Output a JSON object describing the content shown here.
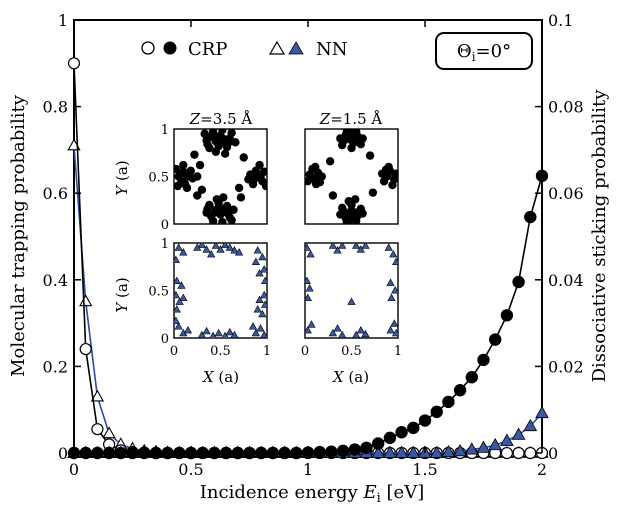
{
  "colors": {
    "crp": "#000000",
    "nn": "#3a58a0",
    "nn_line": "#2d4d9c",
    "frame": "#000000"
  },
  "chart_data": {
    "type": "line",
    "xlabel": "Incidence energy",
    "xlabel_symbol": "E",
    "xlabel_sub": "i",
    "xlabel_unit": " [eV]",
    "ylabel_left": "Molecular trapping probability",
    "ylabel_right": "Dissociative sticking probability",
    "xlim": [
      0,
      2
    ],
    "ylim_left": [
      0,
      1
    ],
    "ylim_right": [
      0,
      0.1
    ],
    "x_ticks": [
      "0",
      "0.5",
      "1",
      "1.5",
      "2"
    ],
    "y_left_ticks": [
      "0",
      "0.2",
      "0.4",
      "0.6",
      "0.8",
      "1"
    ],
    "y_right_ticks": [
      "0",
      "0.02",
      "0.04",
      "0.06",
      "0.08",
      "0.1"
    ],
    "legend": {
      "crp": "CRP",
      "nn": "NN"
    },
    "angle_label": {
      "sym": "Θ",
      "sub": "i",
      "rest": "=0°"
    },
    "series": [
      {
        "name": "CRP",
        "axis": "left",
        "marker": "open-circle",
        "x": [
          0,
          0.05,
          0.1,
          0.15,
          0.2,
          0.25,
          0.3,
          0.35,
          0.4,
          0.45,
          0.5,
          0.55,
          0.6,
          0.65,
          0.7,
          0.75,
          0.8,
          0.85,
          0.9,
          0.95,
          1.0,
          1.05,
          1.1,
          1.15,
          1.2,
          1.25,
          1.3,
          1.35,
          1.4,
          1.45,
          1.5,
          1.55,
          1.6,
          1.65,
          1.7,
          1.75,
          1.8,
          1.85,
          1.9,
          1.95,
          2.0
        ],
        "y": [
          0.9,
          0.24,
          0.055,
          0.02,
          0.006,
          0.002,
          0.001,
          0,
          0,
          0,
          0,
          0,
          0,
          0,
          0,
          0,
          0,
          0,
          0,
          0,
          0,
          0,
          0,
          0,
          0,
          0,
          0,
          0,
          0,
          0,
          0,
          0,
          0,
          0,
          0,
          0,
          0,
          0,
          0,
          0,
          0
        ]
      },
      {
        "name": "CRP",
        "axis": "right",
        "marker": "filled-circle",
        "x": [
          0,
          0.05,
          0.1,
          0.15,
          0.2,
          0.25,
          0.3,
          0.35,
          0.4,
          0.45,
          0.5,
          0.55,
          0.6,
          0.65,
          0.7,
          0.75,
          0.8,
          0.85,
          0.9,
          0.95,
          1.0,
          1.05,
          1.1,
          1.15,
          1.2,
          1.25,
          1.3,
          1.35,
          1.4,
          1.45,
          1.5,
          1.55,
          1.6,
          1.65,
          1.7,
          1.75,
          1.8,
          1.85,
          1.9,
          1.95,
          2.0
        ],
        "y": [
          0,
          0,
          0,
          0,
          0,
          0,
          0,
          0,
          0,
          0,
          0,
          0,
          0,
          0,
          0,
          0,
          0,
          0,
          0,
          0,
          0.0001,
          0.0002,
          0.0003,
          0.0005,
          0.0008,
          0.0012,
          0.0022,
          0.0035,
          0.0048,
          0.0058,
          0.0075,
          0.0095,
          0.0118,
          0.0145,
          0.0175,
          0.0215,
          0.0262,
          0.0318,
          0.0395,
          0.0545,
          0.064
        ]
      },
      {
        "name": "NN",
        "axis": "left",
        "marker": "open-triangle",
        "x": [
          0,
          0.05,
          0.1,
          0.15,
          0.2,
          0.25,
          0.3,
          0.35,
          0.4,
          0.45,
          0.5,
          0.55,
          0.6,
          0.65,
          0.7,
          0.75,
          0.8,
          0.85,
          0.9,
          0.95,
          1.0,
          1.05,
          1.1,
          1.15,
          1.2,
          1.25,
          1.3,
          1.35,
          1.4,
          1.45,
          1.5,
          1.55,
          1.6,
          1.65,
          1.7,
          1.75,
          1.8,
          1.85,
          1.9,
          1.95,
          2.0
        ],
        "y": [
          0.71,
          0.35,
          0.13,
          0.045,
          0.02,
          0.01,
          0.005,
          0.003,
          0.001,
          0,
          0,
          0,
          0,
          0,
          0,
          0,
          0,
          0,
          0,
          0,
          0,
          0,
          0,
          0,
          0,
          0,
          0,
          0,
          0,
          0,
          0,
          0,
          0,
          0,
          0,
          0,
          0,
          0,
          0,
          0,
          0
        ]
      },
      {
        "name": "NN",
        "axis": "right",
        "marker": "filled-triangle",
        "x": [
          0,
          0.05,
          0.1,
          0.15,
          0.2,
          0.25,
          0.3,
          0.35,
          0.4,
          0.45,
          0.5,
          0.55,
          0.6,
          0.65,
          0.7,
          0.75,
          0.8,
          0.85,
          0.9,
          0.95,
          1.0,
          1.05,
          1.1,
          1.15,
          1.2,
          1.25,
          1.3,
          1.35,
          1.4,
          1.45,
          1.5,
          1.55,
          1.6,
          1.65,
          1.7,
          1.75,
          1.8,
          1.85,
          1.9,
          1.95,
          2.0
        ],
        "y": [
          0,
          0,
          0,
          0,
          0,
          0,
          0,
          0,
          0,
          0,
          0,
          0,
          0,
          0,
          0,
          0,
          0,
          0,
          0,
          0,
          0,
          0,
          0,
          0,
          0,
          0,
          0,
          0,
          0,
          0,
          0,
          0,
          0.0002,
          0.0004,
          0.0008,
          0.0012,
          0.0018,
          0.0028,
          0.0042,
          0.0062,
          0.0092
        ]
      }
    ]
  },
  "insets": {
    "titles": [
      {
        "sym": "Z",
        "rest": "=3.5 Å"
      },
      {
        "sym": "Z",
        "rest": "=1.5 Å"
      }
    ],
    "xlabel": {
      "sym": "X",
      "rest": " (a)"
    },
    "ylabel": {
      "sym": "Y",
      "rest": " (a)"
    },
    "x_ticks": [
      "0",
      "0.5",
      "1"
    ],
    "y_ticks": [
      "0",
      "0.5",
      "1"
    ],
    "panels": [
      {
        "name": "CRP Z=3.5",
        "marker": "filled-circle",
        "points": [
          [
            0.35,
            0.88
          ],
          [
            0.4,
            0.92
          ],
          [
            0.45,
            0.87
          ],
          [
            0.5,
            0.93
          ],
          [
            0.55,
            0.89
          ],
          [
            0.6,
            0.9
          ],
          [
            0.38,
            0.8
          ],
          [
            0.48,
            0.82
          ],
          [
            0.57,
            0.81
          ],
          [
            0.42,
            0.97
          ],
          [
            0.52,
            0.99
          ],
          [
            0.62,
            0.96
          ],
          [
            0.33,
            0.95
          ],
          [
            0.45,
            0.76
          ],
          [
            0.55,
            0.74
          ],
          [
            0.5,
            0.86
          ],
          [
            0.44,
            0.9
          ],
          [
            0.58,
            0.85
          ],
          [
            0.36,
            0.84
          ],
          [
            0.66,
            0.86
          ],
          [
            0.05,
            0.5
          ],
          [
            0.1,
            0.55
          ],
          [
            0.08,
            0.45
          ],
          [
            0.15,
            0.5
          ],
          [
            0.02,
            0.58
          ],
          [
            0.12,
            0.42
          ],
          [
            0.18,
            0.56
          ],
          [
            0.04,
            0.4
          ],
          [
            0.2,
            0.48
          ],
          [
            0.1,
            0.62
          ],
          [
            0.07,
            0.52
          ],
          [
            0.14,
            0.38
          ],
          [
            0.9,
            0.5
          ],
          [
            0.95,
            0.45
          ],
          [
            0.88,
            0.56
          ],
          [
            0.82,
            0.52
          ],
          [
            0.97,
            0.55
          ],
          [
            0.85,
            0.42
          ],
          [
            0.92,
            0.62
          ],
          [
            0.8,
            0.47
          ],
          [
            0.99,
            0.4
          ],
          [
            0.93,
            0.5
          ],
          [
            0.87,
            0.48
          ],
          [
            0.35,
            0.12
          ],
          [
            0.4,
            0.08
          ],
          [
            0.45,
            0.15
          ],
          [
            0.5,
            0.1
          ],
          [
            0.55,
            0.14
          ],
          [
            0.6,
            0.07
          ],
          [
            0.38,
            0.2
          ],
          [
            0.48,
            0.22
          ],
          [
            0.57,
            0.19
          ],
          [
            0.42,
            0.03
          ],
          [
            0.52,
            0.02
          ],
          [
            0.62,
            0.04
          ],
          [
            0.46,
            0.26
          ],
          [
            0.53,
            0.28
          ],
          [
            0.5,
            0.16
          ],
          [
            0.44,
            0.12
          ],
          [
            0.58,
            0.11
          ],
          [
            0.36,
            0.16
          ],
          [
            0.64,
            0.15
          ],
          [
            0.25,
            0.3
          ],
          [
            0.72,
            0.28
          ],
          [
            0.22,
            0.73
          ],
          [
            0.75,
            0.7
          ],
          [
            0.28,
            0.62
          ],
          [
            0.7,
            0.38
          ],
          [
            0.3,
            0.36
          ],
          [
            0.25,
            0.5
          ]
        ]
      },
      {
        "name": "CRP Z=1.5",
        "marker": "filled-circle",
        "points": [
          [
            0.38,
            0.9
          ],
          [
            0.44,
            0.94
          ],
          [
            0.5,
            0.88
          ],
          [
            0.56,
            0.93
          ],
          [
            0.62,
            0.9
          ],
          [
            0.4,
            0.83
          ],
          [
            0.5,
            0.8
          ],
          [
            0.6,
            0.84
          ],
          [
            0.45,
            0.98
          ],
          [
            0.55,
            0.97
          ],
          [
            0.48,
            0.91
          ],
          [
            0.53,
            0.86
          ],
          [
            0.42,
            0.88
          ],
          [
            0.58,
            0.88
          ],
          [
            0.5,
            0.95
          ],
          [
            0.05,
            0.52
          ],
          [
            0.1,
            0.47
          ],
          [
            0.14,
            0.54
          ],
          [
            0.03,
            0.45
          ],
          [
            0.18,
            0.5
          ],
          [
            0.08,
            0.58
          ],
          [
            0.12,
            0.42
          ],
          [
            0.06,
            0.5
          ],
          [
            0.16,
            0.44
          ],
          [
            0.11,
            0.6
          ],
          [
            0.88,
            0.5
          ],
          [
            0.92,
            0.55
          ],
          [
            0.96,
            0.47
          ],
          [
            0.85,
            0.45
          ],
          [
            0.9,
            0.6
          ],
          [
            0.98,
            0.53
          ],
          [
            0.83,
            0.53
          ],
          [
            0.94,
            0.41
          ],
          [
            0.87,
            0.57
          ],
          [
            0.38,
            0.1
          ],
          [
            0.44,
            0.06
          ],
          [
            0.5,
            0.14
          ],
          [
            0.56,
            0.08
          ],
          [
            0.62,
            0.11
          ],
          [
            0.4,
            0.17
          ],
          [
            0.5,
            0.2
          ],
          [
            0.6,
            0.16
          ],
          [
            0.45,
            0.02
          ],
          [
            0.55,
            0.03
          ],
          [
            0.48,
            0.1
          ],
          [
            0.53,
            0.12
          ],
          [
            0.42,
            0.13
          ],
          [
            0.58,
            0.13
          ],
          [
            0.5,
            0.05
          ],
          [
            0.47,
            0.24
          ],
          [
            0.54,
            0.26
          ],
          [
            0.3,
            0.3
          ],
          [
            0.7,
            0.72
          ],
          [
            0.27,
            0.66
          ],
          [
            0.73,
            0.33
          ]
        ]
      },
      {
        "name": "NN Z=3.5",
        "marker": "filled-triangle",
        "points": [
          [
            0.05,
            0.95
          ],
          [
            0.1,
            0.9
          ],
          [
            0.02,
            0.82
          ],
          [
            0.3,
            0.98
          ],
          [
            0.35,
            0.93
          ],
          [
            0.45,
            0.97
          ],
          [
            0.5,
            0.93
          ],
          [
            0.55,
            0.98
          ],
          [
            0.6,
            0.95
          ],
          [
            0.65,
            0.92
          ],
          [
            0.9,
            0.92
          ],
          [
            0.95,
            0.85
          ],
          [
            0.88,
            0.8
          ],
          [
            0.97,
            0.72
          ],
          [
            0.92,
            0.68
          ],
          [
            0.98,
            0.6
          ],
          [
            0.03,
            0.6
          ],
          [
            0.08,
            0.55
          ],
          [
            0.02,
            0.45
          ],
          [
            0.06,
            0.38
          ],
          [
            0.1,
            0.42
          ],
          [
            0.03,
            0.3
          ],
          [
            0.92,
            0.4
          ],
          [
            0.97,
            0.45
          ],
          [
            0.9,
            0.3
          ],
          [
            0.98,
            0.35
          ],
          [
            0.95,
            0.25
          ],
          [
            0.05,
            0.12
          ],
          [
            0.1,
            0.05
          ],
          [
            0.15,
            0.08
          ],
          [
            0.02,
            0.18
          ],
          [
            0.3,
            0.03
          ],
          [
            0.35,
            0.07
          ],
          [
            0.42,
            0.02
          ],
          [
            0.48,
            0.05
          ],
          [
            0.55,
            0.02
          ],
          [
            0.6,
            0.06
          ],
          [
            0.65,
            0.03
          ],
          [
            0.88,
            0.05
          ],
          [
            0.93,
            0.1
          ],
          [
            0.97,
            0.03
          ],
          [
            0.85,
            0.12
          ],
          [
            0.7,
            0.9
          ],
          [
            0.25,
            0.95
          ],
          [
            0.4,
            0.88
          ]
        ]
      },
      {
        "name": "NN Z=1.5",
        "marker": "filled-triangle",
        "points": [
          [
            0.02,
            0.95
          ],
          [
            0.06,
            0.88
          ],
          [
            0.3,
            0.97
          ],
          [
            0.35,
            0.92
          ],
          [
            0.4,
            0.97
          ],
          [
            0.55,
            0.97
          ],
          [
            0.6,
            0.93
          ],
          [
            0.65,
            0.97
          ],
          [
            0.9,
            0.95
          ],
          [
            0.95,
            0.88
          ],
          [
            0.98,
            0.8
          ],
          [
            0.02,
            0.6
          ],
          [
            0.05,
            0.52
          ],
          [
            0.03,
            0.42
          ],
          [
            0.92,
            0.58
          ],
          [
            0.97,
            0.5
          ],
          [
            0.93,
            0.42
          ],
          [
            0.5,
            0.38
          ],
          [
            0.3,
            0.05
          ],
          [
            0.35,
            0.1
          ],
          [
            0.4,
            0.03
          ],
          [
            0.55,
            0.03
          ],
          [
            0.6,
            0.08
          ],
          [
            0.65,
            0.04
          ],
          [
            0.03,
            0.08
          ],
          [
            0.07,
            0.14
          ],
          [
            0.92,
            0.08
          ],
          [
            0.96,
            0.15
          ],
          [
            0.98,
            0.05
          ]
        ]
      }
    ]
  }
}
